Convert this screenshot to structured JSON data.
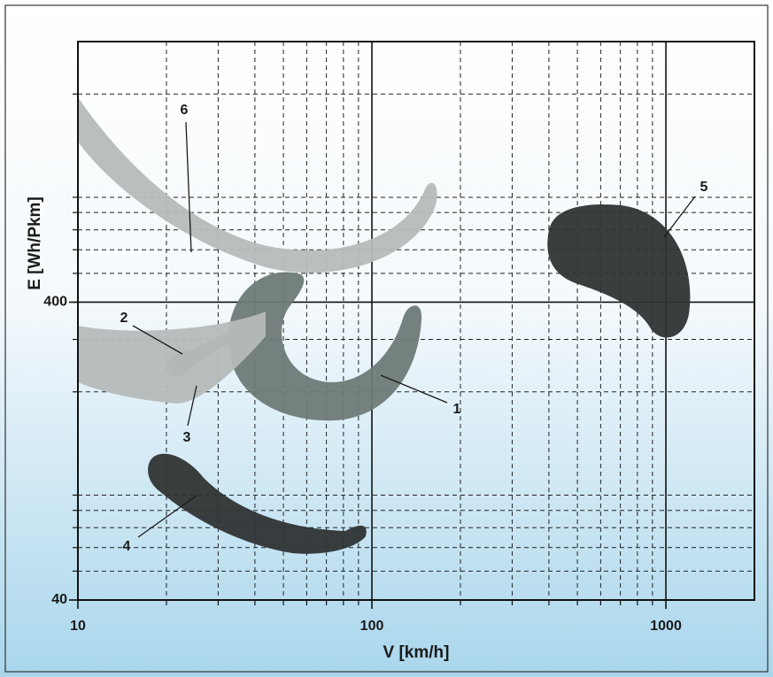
{
  "chart_data": {
    "type": "region",
    "xlabel": "V [km/h]",
    "ylabel": "E [Wh/Pkm]",
    "xscale": "log",
    "yscale": "log",
    "xlim": [
      10,
      2000
    ],
    "ylim": [
      40,
      3000
    ],
    "xticks": [
      10,
      100,
      1000
    ],
    "yticks": [
      40,
      400
    ],
    "grid": true,
    "minor_grid": true,
    "series": [
      {
        "name": "1",
        "color": "#6e7a78"
      },
      {
        "name": "2",
        "color": "#6e7a78"
      },
      {
        "name": "3",
        "color": "#b5baba"
      },
      {
        "name": "4",
        "color": "#2f3434"
      },
      {
        "name": "5",
        "color": "#2f3434"
      },
      {
        "name": "6",
        "color": "#b5baba"
      }
    ]
  }
}
